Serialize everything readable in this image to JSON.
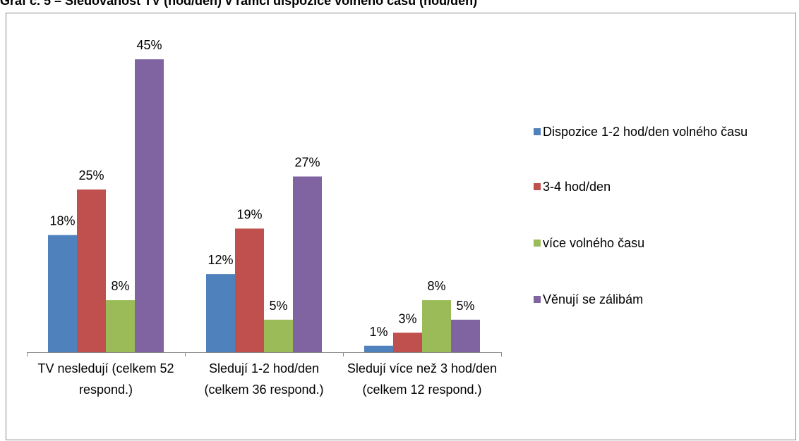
{
  "chart_data": {
    "type": "bar",
    "title": "Graf č. 5 – Sledovanost TV (hod/den) v rámci dispozice volného času (hod/den)",
    "categories": [
      "TV nesledují (celkem 52 respond.)",
      "Sledují 1-2 hod/den (celkem 36 respond.)",
      "Sledují více než 3 hod/den (celkem 12 respond.)"
    ],
    "series": [
      {
        "name": "Dispozice 1-2 hod/den volného času",
        "color": "#4f81bd",
        "values": [
          18,
          12,
          1
        ],
        "value_labels": [
          "18%",
          "12%",
          "1%"
        ]
      },
      {
        "name": "3-4 hod/den",
        "color": "#c0504d",
        "values": [
          25,
          19,
          3
        ],
        "value_labels": [
          "25%",
          "19%",
          "3%"
        ]
      },
      {
        "name": "více volného času",
        "color": "#9bbb59",
        "values": [
          8,
          5,
          8
        ],
        "value_labels": [
          "8%",
          "5%",
          "8%"
        ]
      },
      {
        "name": "Věnují se zálibám",
        "color": "#8064a2",
        "values": [
          45,
          27,
          5
        ],
        "value_labels": [
          "45%",
          "27%",
          "5%"
        ]
      }
    ],
    "ylim": [
      0,
      50
    ],
    "legend": "right"
  }
}
